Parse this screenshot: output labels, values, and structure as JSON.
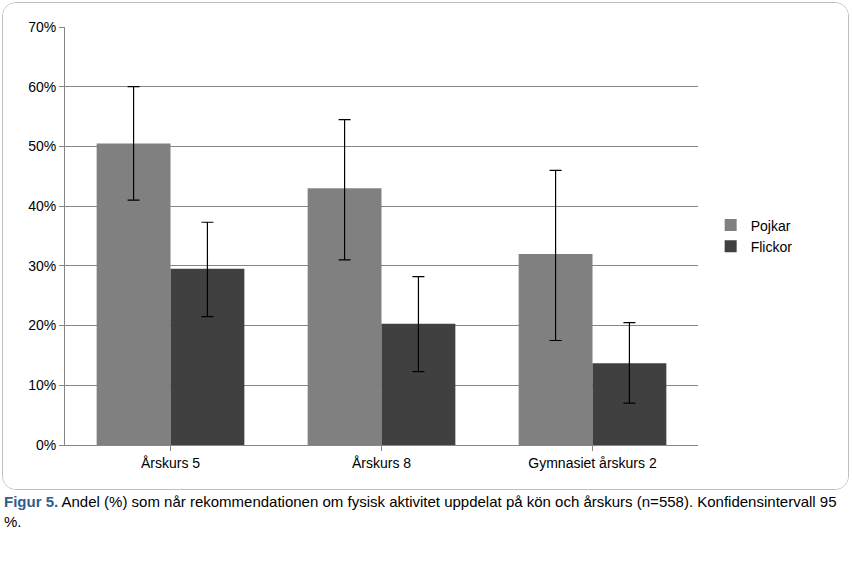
{
  "chart_data": {
    "type": "bar",
    "caption_label": "Figur 5.",
    "caption": "Andel (%) som når rekommendationen om fysisk aktivitet uppdelat på kön och årskurs (n=558). Konfidensintervall 95 %.",
    "categories": [
      "Årskurs 5",
      "Årskurs 8",
      "Gymnasiet årskurs 2"
    ],
    "series": [
      {
        "name": "Pojkar",
        "color": "#808080",
        "values": [
          50.5,
          43,
          32
        ],
        "ci_low": [
          41,
          31,
          17.5
        ],
        "ci_high": [
          60,
          54.5,
          46
        ]
      },
      {
        "name": "Flickor",
        "color": "#404040",
        "values": [
          29.5,
          20.3,
          13.7
        ],
        "ci_low": [
          21.5,
          12.3,
          7
        ],
        "ci_high": [
          37.3,
          28.2,
          20.5
        ]
      }
    ],
    "ylim": [
      0,
      70
    ],
    "yticks": [
      {
        "value": 0,
        "label": "0%"
      },
      {
        "value": 10,
        "label": "10%"
      },
      {
        "value": 20,
        "label": "20%"
      },
      {
        "value": 30,
        "label": "30%"
      },
      {
        "value": 40,
        "label": "40%"
      },
      {
        "value": 50,
        "label": "50%"
      },
      {
        "value": 60,
        "label": "60%"
      },
      {
        "value": 70,
        "label": "70%"
      }
    ],
    "grid": true,
    "legend": "right"
  }
}
